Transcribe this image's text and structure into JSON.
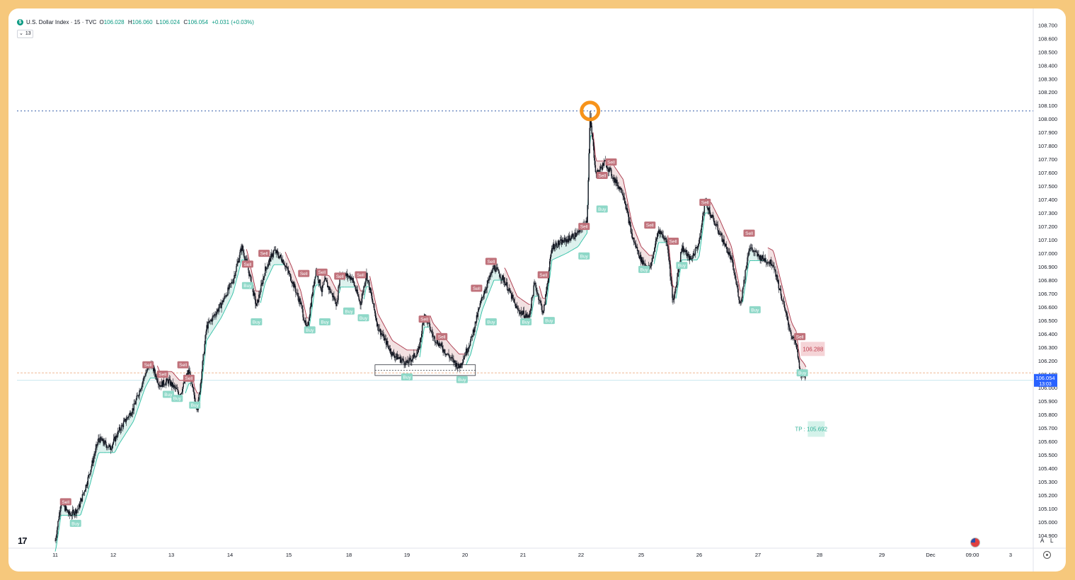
{
  "legend": {
    "symbol_icon": "dollar-icon",
    "title": "U.S. Dollar Index · 15 · TVC",
    "o_label": "O",
    "o": "106.028",
    "h_label": "H",
    "h": "106.060",
    "l_label": "L",
    "l": "106.024",
    "c_label": "C",
    "c": "106.054",
    "change": "+0.031 (+0.03%)",
    "indicator_toggle": "⌄",
    "indicator_count": "13"
  },
  "footer": {
    "logo": "17",
    "auto_label": "A",
    "log_label": "L"
  },
  "colors": {
    "up": "#089981",
    "down": "#f23645",
    "candle": "#131722",
    "sell_line": "#a83246",
    "buy_line": "#2bbfa3",
    "sell_fill": "#e8c6c9",
    "buy_fill": "#bfe6de",
    "sell_box": "#c0727b",
    "buy_box": "#8fd8c8",
    "highlight": "#f7931a",
    "level_line": "#4a6fb3",
    "current_price_bg": "#2962ff"
  },
  "chart_data": {
    "type": "candlestick",
    "symbol": "U.S. Dollar Index",
    "interval": "15",
    "ylim": [
      104.81,
      108.77
    ],
    "y_ticks": [
      "108.700",
      "108.600",
      "108.500",
      "108.400",
      "108.300",
      "108.200",
      "108.100",
      "108.000",
      "107.900",
      "107.800",
      "107.700",
      "107.600",
      "107.500",
      "107.400",
      "107.300",
      "107.200",
      "107.100",
      "107.000",
      "106.900",
      "106.800",
      "106.700",
      "106.600",
      "106.500",
      "106.400",
      "106.300",
      "106.200",
      "106.100",
      "106.000",
      "105.900",
      "105.800",
      "105.700",
      "105.600",
      "105.500",
      "105.400",
      "105.300",
      "105.200",
      "105.100",
      "105.000",
      "104.900"
    ],
    "x_ticks": [
      "11",
      "12",
      "13",
      "14",
      "15",
      "18",
      "19",
      "20",
      "21",
      "22",
      "25",
      "26",
      "27",
      "28",
      "29",
      "Dec",
      "09:00",
      "3"
    ],
    "current_price": "106.054",
    "countdown": "13:03",
    "levels": {
      "high_dotted": 108.06,
      "orange_dashed": 106.11,
      "current_line": 106.054
    },
    "price_path": [
      [
        0.0,
        104.86
      ],
      [
        0.1,
        105.15
      ],
      [
        0.25,
        105.05
      ],
      [
        0.4,
        105.1
      ],
      [
        0.55,
        105.3
      ],
      [
        0.75,
        105.62
      ],
      [
        0.95,
        105.55
      ],
      [
        1.1,
        105.68
      ],
      [
        1.35,
        105.85
      ],
      [
        1.55,
        106.1
      ],
      [
        1.65,
        106.18
      ],
      [
        1.8,
        106.02
      ],
      [
        1.95,
        106.05
      ],
      [
        2.05,
        106.0
      ],
      [
        2.15,
        105.95
      ],
      [
        2.3,
        106.13
      ],
      [
        2.4,
        105.9
      ],
      [
        2.45,
        105.85
      ],
      [
        2.6,
        106.45
      ],
      [
        2.85,
        106.62
      ],
      [
        3.05,
        106.8
      ],
      [
        3.2,
        107.05
      ],
      [
        3.3,
        106.9
      ],
      [
        3.45,
        106.6
      ],
      [
        3.6,
        106.88
      ],
      [
        3.75,
        107.02
      ],
      [
        3.9,
        106.95
      ],
      [
        4.05,
        106.8
      ],
      [
        4.2,
        106.62
      ],
      [
        4.3,
        106.42
      ],
      [
        4.45,
        106.88
      ],
      [
        4.55,
        106.72
      ],
      [
        4.6,
        106.8
      ],
      [
        4.8,
        106.62
      ],
      [
        4.85,
        106.85
      ],
      [
        5.05,
        106.82
      ],
      [
        5.2,
        106.62
      ],
      [
        5.3,
        106.85
      ],
      [
        5.5,
        106.45
      ],
      [
        5.75,
        106.25
      ],
      [
        6.0,
        106.18
      ],
      [
        6.2,
        106.27
      ],
      [
        6.3,
        106.55
      ],
      [
        6.45,
        106.38
      ],
      [
        6.6,
        106.3
      ],
      [
        6.75,
        106.22
      ],
      [
        6.9,
        106.15
      ],
      [
        7.1,
        106.35
      ],
      [
        7.3,
        106.68
      ],
      [
        7.5,
        106.9
      ],
      [
        7.7,
        106.78
      ],
      [
        7.9,
        106.58
      ],
      [
        8.1,
        106.52
      ],
      [
        8.2,
        106.78
      ],
      [
        8.35,
        106.55
      ],
      [
        8.5,
        107.05
      ],
      [
        8.75,
        107.1
      ],
      [
        8.95,
        107.15
      ],
      [
        9.1,
        107.25
      ],
      [
        9.15,
        108.02
      ],
      [
        9.25,
        107.58
      ],
      [
        9.4,
        107.68
      ],
      [
        9.55,
        107.55
      ],
      [
        9.7,
        107.45
      ],
      [
        9.85,
        107.12
      ],
      [
        10.0,
        106.95
      ],
      [
        10.15,
        106.88
      ],
      [
        10.3,
        107.18
      ],
      [
        10.45,
        107.08
      ],
      [
        10.55,
        106.62
      ],
      [
        10.7,
        107.05
      ],
      [
        10.85,
        106.95
      ],
      [
        11.0,
        107.08
      ],
      [
        11.1,
        107.4
      ],
      [
        11.2,
        107.28
      ],
      [
        11.35,
        107.15
      ],
      [
        11.55,
        106.95
      ],
      [
        11.7,
        106.62
      ],
      [
        11.85,
        107.05
      ],
      [
        12.0,
        106.98
      ],
      [
        12.25,
        106.92
      ],
      [
        12.45,
        106.55
      ],
      [
        12.55,
        106.38
      ],
      [
        12.62,
        106.32
      ],
      [
        12.68,
        106.12
      ],
      [
        12.75,
        106.08
      ],
      [
        12.78,
        106.054
      ]
    ],
    "series": [
      {
        "name": "Sell",
        "values": [
          [
            0.18,
            105.15
          ],
          [
            1.6,
            106.17
          ],
          [
            1.85,
            106.1
          ],
          [
            2.2,
            106.17
          ],
          [
            2.3,
            106.07
          ],
          [
            3.3,
            106.92
          ],
          [
            3.58,
            107.0
          ],
          [
            4.25,
            106.85
          ],
          [
            4.55,
            106.86
          ],
          [
            4.85,
            106.83
          ],
          [
            5.2,
            106.84
          ],
          [
            6.3,
            106.51
          ],
          [
            6.6,
            106.38
          ],
          [
            7.45,
            106.94
          ],
          [
            7.2,
            106.74
          ],
          [
            8.35,
            106.84
          ],
          [
            9.05,
            107.2
          ],
          [
            9.35,
            107.58
          ],
          [
            9.5,
            107.68
          ],
          [
            10.15,
            107.21
          ],
          [
            10.55,
            107.09
          ],
          [
            11.1,
            107.38
          ],
          [
            11.85,
            107.15
          ],
          [
            12.68,
            106.38
          ]
        ]
      },
      {
        "name": "Buy",
        "values": [
          [
            0.35,
            104.99
          ],
          [
            1.95,
            105.95
          ],
          [
            2.1,
            105.92
          ],
          [
            2.4,
            105.87
          ],
          [
            3.3,
            106.76
          ],
          [
            3.45,
            106.49
          ],
          [
            4.35,
            106.43
          ],
          [
            4.6,
            106.49
          ],
          [
            5.0,
            106.57
          ],
          [
            5.25,
            106.52
          ],
          [
            6.0,
            106.08
          ],
          [
            6.95,
            106.06
          ],
          [
            7.45,
            106.49
          ],
          [
            8.05,
            106.49
          ],
          [
            8.45,
            106.5
          ],
          [
            9.05,
            106.98
          ],
          [
            9.35,
            107.33
          ],
          [
            10.05,
            106.88
          ],
          [
            10.7,
            106.91
          ],
          [
            11.95,
            106.58
          ],
          [
            12.72,
            106.11
          ]
        ]
      }
    ],
    "trade_labels": {
      "stop": "106.288",
      "stop_value": 106.288,
      "tp_prefix": "TP : ",
      "tp": "105.692",
      "tp_value": 105.692
    },
    "signal_labels": {
      "sell": "Sell",
      "buy": "Buy"
    }
  }
}
